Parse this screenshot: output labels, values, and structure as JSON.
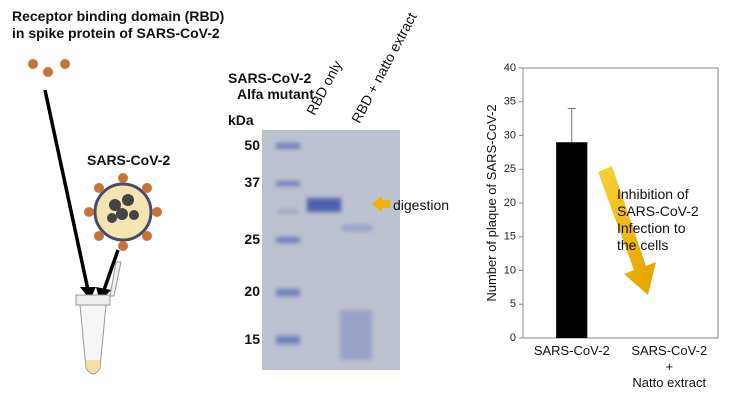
{
  "diagram": {
    "rbd_title": [
      "Receptor binding domain (RBD)",
      "in spike protein of SARS-CoV-2"
    ],
    "virus_label": "SARS-CoV-2"
  },
  "gel": {
    "sample": [
      "SARS-CoV-2",
      "Alfa mutant"
    ],
    "unit": "kDa",
    "lanes": [
      "RBD only",
      "RBD + natto extract"
    ],
    "markers": [
      50,
      37,
      25,
      20,
      15
    ],
    "band_label": "digestion"
  },
  "chart_data": {
    "type": "bar",
    "ylabel": "Number of plaque of SARS-CoV-2",
    "categories": [
      "SARS-CoV-2",
      "SARS-CoV-2\n+\nNatto extract"
    ],
    "values": [
      29,
      0
    ],
    "errors": [
      5,
      null
    ],
    "color": "#000000",
    "ylim": [
      0,
      40
    ],
    "yticks": [
      0,
      5,
      10,
      15,
      20,
      25,
      30,
      35,
      40
    ],
    "grid": false,
    "annotation": [
      "Inhibition of",
      "SARS-CoV-2",
      "Infection to",
      "the cells"
    ]
  }
}
